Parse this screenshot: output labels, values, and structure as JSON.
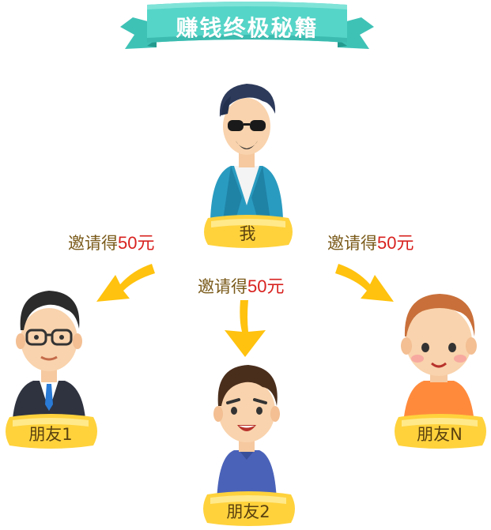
{
  "title": "赚钱终极秘籍",
  "nodes": {
    "me": "我",
    "friend1": "朋友1",
    "friend2": "朋友2",
    "friendN": "朋友N"
  },
  "invites": {
    "left": {
      "prefix": "邀请得",
      "amount": "50元"
    },
    "center": {
      "prefix": "邀请得",
      "amount": "50元"
    },
    "right": {
      "prefix": "邀请得",
      "amount": "50元"
    }
  },
  "colors": {
    "ribbon": "#52d3c6",
    "ribbon_dark": "#2fb0a4",
    "gold": "#ffd23c",
    "gold_light": "#ffe98a",
    "arrow": "#ffc20e",
    "amount_red": "#d8221f",
    "label_brown": "#7a5a1a"
  }
}
